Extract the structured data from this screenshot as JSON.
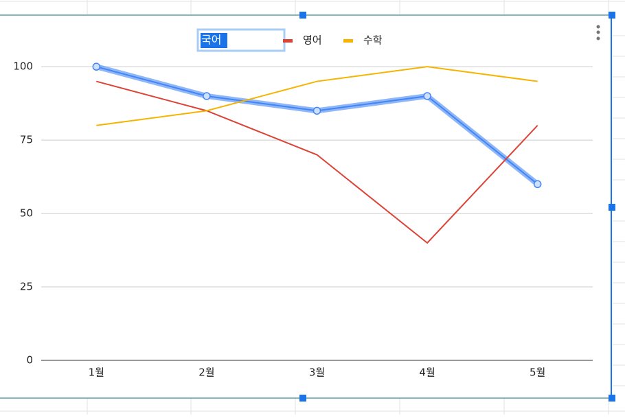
{
  "chart_data": {
    "type": "line",
    "categories": [
      "1월",
      "2월",
      "3월",
      "4월",
      "5월"
    ],
    "series": [
      {
        "name": "국어",
        "color": "#4285f4",
        "values": [
          100,
          90,
          85,
          90,
          60
        ]
      },
      {
        "name": "영어",
        "color": "#db4437",
        "values": [
          95,
          85,
          70,
          40,
          80
        ]
      },
      {
        "name": "수학",
        "color": "#f4b400",
        "values": [
          80,
          85,
          95,
          100,
          95
        ]
      }
    ],
    "ylim": [
      0,
      115
    ],
    "yticks": [
      0,
      25,
      50,
      75,
      100
    ],
    "grid": true,
    "legend": "top"
  }
}
